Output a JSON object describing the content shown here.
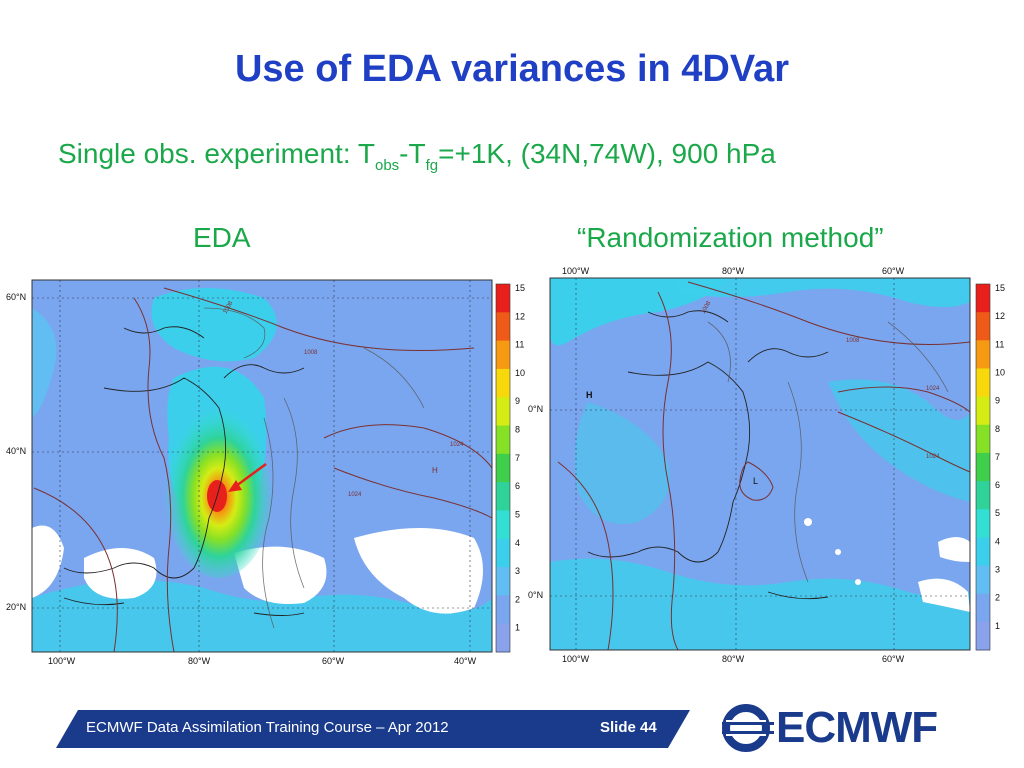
{
  "slide": {
    "title": "Use of EDA variances in 4DVar",
    "subtitle": {
      "prefix": "Single obs. experiment: T",
      "sub1": "obs",
      "mid": "-T",
      "sub2": "fg",
      "suffix": "=+1K, (34N,74W), 900 hPa"
    },
    "left_heading": "EDA",
    "right_heading": "“Randomization method”"
  },
  "maps": {
    "eda": {
      "lat_labels": [
        "60°N",
        "40°N",
        "20°N"
      ],
      "lon_labels": [
        "100°W",
        "80°W",
        "60°W",
        "40°W"
      ],
      "pressure_labels": [
        "1008",
        "1008",
        "1024",
        "1024"
      ],
      "high_label": "H",
      "colorbar_ticks": [
        "15",
        "12",
        "11",
        "10",
        "9",
        "8",
        "7",
        "6",
        "5",
        "4",
        "3",
        "2",
        "1"
      ]
    },
    "randomization": {
      "lat_labels": [
        "0°N",
        "0°N"
      ],
      "lon_labels_top": [
        "100°W",
        "80°W",
        "60°W"
      ],
      "lon_labels_bottom": [
        "100°W",
        "80°W",
        "60°W"
      ],
      "pressure_labels": [
        "1008",
        "1008",
        "1024",
        "1024"
      ],
      "high_label": "H",
      "low_label": "L",
      "colorbar_ticks": [
        "15",
        "12",
        "11",
        "10",
        "9",
        "8",
        "7",
        "6",
        "5",
        "4",
        "3",
        "2",
        "1"
      ]
    },
    "colorbar_colors": [
      "#e8201c",
      "#f05a18",
      "#f59a12",
      "#f7d80c",
      "#d4ec14",
      "#86e026",
      "#3fcf4a",
      "#2fd39a",
      "#32dfd2",
      "#3ccfec",
      "#62bdf2",
      "#7aa6ef",
      "#8aa2ec"
    ]
  },
  "footer": {
    "course": "ECMWF Data Assimilation Training Course – Apr 2012",
    "slide": "Slide 44",
    "logo_text": "ECMWF"
  }
}
